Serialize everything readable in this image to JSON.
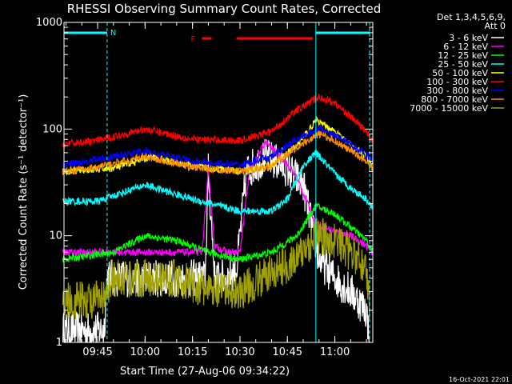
{
  "chart_data": {
    "type": "line",
    "title": "RHESSI Observing Summary Count Rates, Corrected",
    "xlabel": "Start Time (27-Aug-06 09:34:22)",
    "ylabel": "Corrected Count Rate (s⁻¹ detector⁻¹)",
    "yscale": "log",
    "ylim": [
      1,
      1000
    ],
    "xlim": [
      "09:34:22",
      "11:12:00"
    ],
    "x_ticks": [
      "09:45",
      "10:00",
      "10:15",
      "10:30",
      "10:45",
      "11:00"
    ],
    "y_ticks": [
      "1",
      "10",
      "100",
      "1000"
    ],
    "legend_header": [
      "Det 1,3,4,5,6,9,",
      "Att 0"
    ],
    "legend_position": "right",
    "timestamp": "16-Oct-2021 22:01",
    "markers": {
      "night_label": "N",
      "flare_label": "F",
      "night_intervals": [
        [
          "09:34:22",
          "09:48:00"
        ],
        [
          "10:54:00",
          "11:11:00"
        ]
      ],
      "flare_intervals": [
        [
          "10:18:00",
          "10:21:00"
        ],
        [
          "10:29:00",
          "10:53:00"
        ]
      ],
      "vertical_lines": [
        "09:48:00",
        "10:54:00",
        "11:11:00"
      ]
    },
    "series": [
      {
        "name": "3 - 6 keV",
        "color": "#ffffff",
        "times": [
          "09:34",
          "09:47",
          "09:48",
          "10:15",
          "10:19",
          "10:20",
          "10:22",
          "10:26",
          "10:29",
          "10:32",
          "10:38",
          "10:44",
          "10:50",
          "10:55",
          "11:00",
          "11:05",
          "11:10",
          "11:11"
        ],
        "values": [
          1.3,
          1.3,
          4,
          4,
          4,
          40,
          4,
          4,
          5,
          40,
          55,
          45,
          30,
          6,
          4,
          3,
          2,
          1
        ]
      },
      {
        "name": "6 - 12 keV",
        "color": "#ff00ff",
        "times": [
          "09:34",
          "09:50",
          "10:00",
          "10:15",
          "10:18",
          "10:20",
          "10:22",
          "10:26",
          "10:30",
          "10:33",
          "10:38",
          "10:43",
          "10:48",
          "10:54",
          "11:00",
          "11:05",
          "11:10",
          "11:12"
        ],
        "values": [
          7,
          7,
          7,
          7,
          7,
          40,
          8,
          7,
          7,
          40,
          75,
          55,
          35,
          13,
          11,
          10,
          8,
          7
        ]
      },
      {
        "name": "12 - 25 keV",
        "color": "#00ff00",
        "times": [
          "09:34",
          "09:50",
          "10:00",
          "10:10",
          "10:20",
          "10:30",
          "10:40",
          "10:48",
          "10:54",
          "11:00",
          "11:05",
          "11:10",
          "11:12"
        ],
        "values": [
          6,
          7,
          10,
          9,
          7,
          6,
          7,
          10,
          19,
          16,
          12,
          9,
          7
        ]
      },
      {
        "name": "25 - 50 keV",
        "color": "#00ffff",
        "times": [
          "09:34",
          "09:45",
          "10:00",
          "10:15",
          "10:30",
          "10:40",
          "10:45",
          "10:50",
          "10:54",
          "11:00",
          "11:05",
          "11:10",
          "11:12"
        ],
        "values": [
          21,
          21,
          30,
          22,
          17,
          17,
          22,
          45,
          60,
          38,
          28,
          22,
          18
        ]
      },
      {
        "name": "50 - 100 keV",
        "color": "#ffff00",
        "times": [
          "09:34",
          "09:50",
          "10:02",
          "10:15",
          "10:30",
          "10:40",
          "10:48",
          "10:54",
          "11:00",
          "11:05",
          "11:10",
          "11:12"
        ],
        "values": [
          40,
          43,
          55,
          45,
          40,
          45,
          70,
          120,
          95,
          70,
          55,
          45
        ]
      },
      {
        "name": "100 - 300 keV",
        "color": "#ff0000",
        "times": [
          "09:34",
          "09:45",
          "10:00",
          "10:15",
          "10:30",
          "10:40",
          "10:48",
          "10:55",
          "11:00",
          "11:05",
          "11:10",
          "11:12"
        ],
        "values": [
          72,
          78,
          100,
          80,
          78,
          95,
          150,
          200,
          175,
          130,
          95,
          75
        ]
      },
      {
        "name": "300 - 800 keV",
        "color": "#0000ff",
        "times": [
          "09:34",
          "09:45",
          "10:00",
          "10:15",
          "10:30",
          "10:40",
          "10:48",
          "10:55",
          "11:00",
          "11:05",
          "11:10",
          "11:12"
        ],
        "values": [
          46,
          52,
          62,
          50,
          46,
          55,
          80,
          102,
          88,
          72,
          58,
          48
        ]
      },
      {
        "name": "800 - 7000 keV",
        "color": "#ff8c00",
        "times": [
          "09:34",
          "09:45",
          "10:00",
          "10:15",
          "10:30",
          "10:40",
          "10:48",
          "10:55",
          "11:00",
          "11:05",
          "11:10",
          "11:12"
        ],
        "values": [
          40,
          44,
          55,
          44,
          40,
          45,
          68,
          90,
          78,
          62,
          50,
          42
        ]
      },
      {
        "name": "7000 - 15000 keV",
        "color": "#a0a000",
        "times": [
          "09:34",
          "09:48",
          "09:49",
          "10:10",
          "10:20",
          "10:30",
          "10:40",
          "10:48",
          "10:54",
          "11:00",
          "11:05",
          "11:10",
          "11:11"
        ],
        "values": [
          2.5,
          2.5,
          4,
          4,
          3,
          3,
          4.5,
          6,
          10,
          9,
          7,
          5,
          2
        ]
      }
    ]
  }
}
